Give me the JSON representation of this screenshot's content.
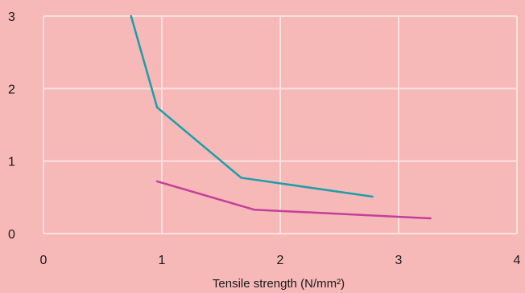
{
  "chart_data": {
    "type": "line",
    "xlabel": "Tensile strength (N/mm²)",
    "xlim": [
      0,
      4
    ],
    "ylim": [
      0,
      3
    ],
    "xticks": [
      0,
      1,
      2,
      3,
      4
    ],
    "yticks": [
      0,
      1,
      2,
      3
    ],
    "grid": true,
    "colors": {
      "background": "#f7b8b8",
      "grid": "#fbe0e0",
      "series": [
        "#1a9eaa",
        "#c43f9a"
      ]
    },
    "series": [
      {
        "x": [
          0.74,
          0.96,
          1.67,
          2.78
        ],
        "y": [
          3.0,
          1.74,
          0.77,
          0.51
        ]
      },
      {
        "x": [
          0.96,
          1.78,
          3.27
        ],
        "y": [
          0.72,
          0.33,
          0.21
        ]
      }
    ]
  }
}
